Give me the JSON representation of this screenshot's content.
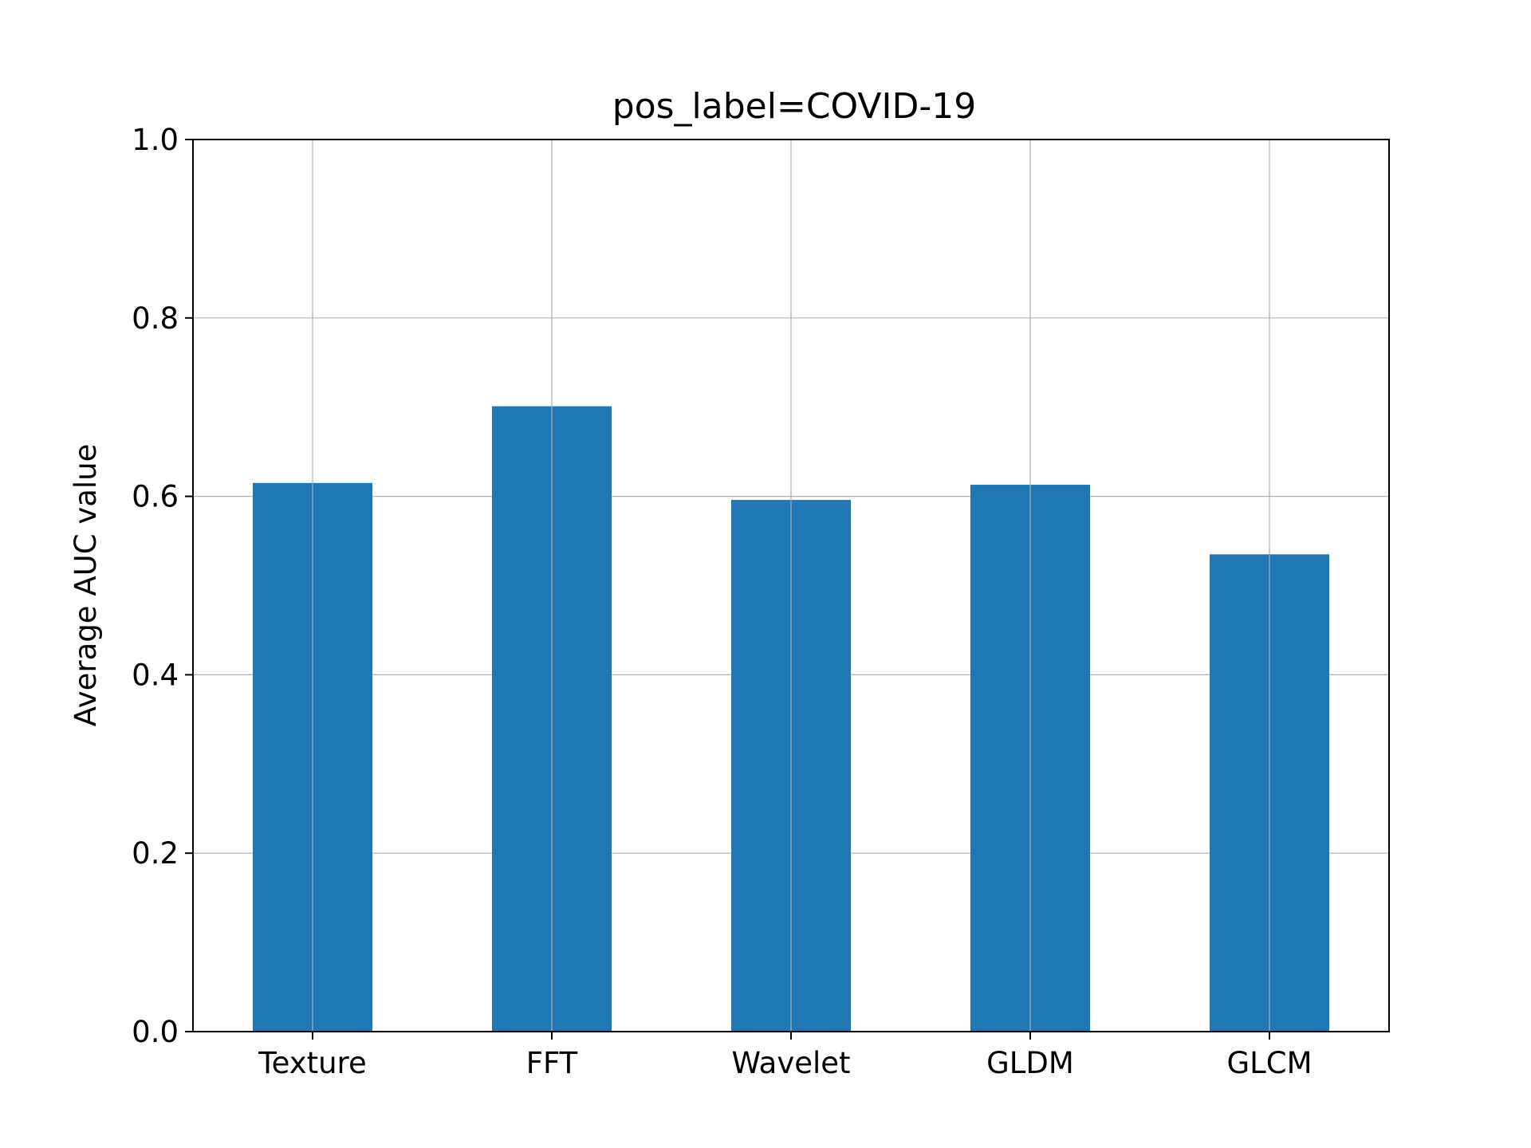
{
  "chart_data": {
    "type": "bar",
    "title": "pos_label=COVID-19",
    "xlabel": "",
    "ylabel": "Average AUC value",
    "categories": [
      "Texture",
      "FFT",
      "Wavelet",
      "GLDM",
      "GLCM"
    ],
    "values": [
      0.615,
      0.701,
      0.596,
      0.613,
      0.535
    ],
    "ylim": [
      0,
      1.0
    ],
    "yticks": [
      "0.0",
      "0.2",
      "0.4",
      "0.6",
      "0.8",
      "1.0"
    ],
    "grid": true,
    "legend": "none",
    "bar_color": "#1f77b4",
    "grid_color": "#b0b0b0"
  }
}
